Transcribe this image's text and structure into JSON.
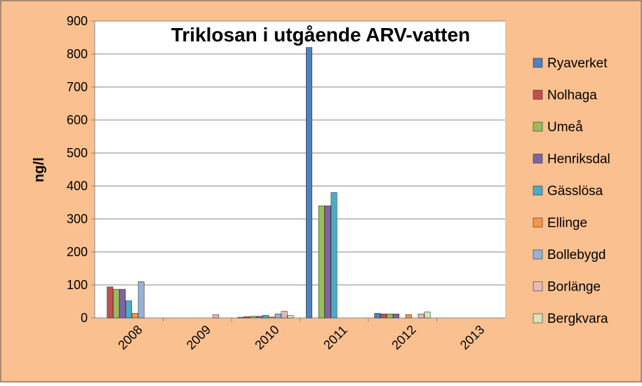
{
  "chart_data": {
    "type": "bar",
    "title": "Triklosan i utgående ARV-vatten",
    "xlabel": "",
    "ylabel": "ng/l",
    "ylim": [
      0,
      900
    ],
    "yticks": [
      "0",
      "100",
      "200",
      "300",
      "400",
      "500",
      "600",
      "700",
      "800",
      "900"
    ],
    "grid": true,
    "legend_position": "right",
    "categories": [
      "2008",
      "2009",
      "2010",
      "2011",
      "2012",
      "2013"
    ],
    "series": [
      {
        "name": "Ryaverket",
        "color": "#4F81BD",
        "values": [
          null,
          null,
          2,
          820,
          14,
          null
        ]
      },
      {
        "name": "Nolhaga",
        "color": "#C0504D",
        "values": [
          94,
          null,
          4,
          null,
          12,
          null
        ]
      },
      {
        "name": "Umeå",
        "color": "#9BBB59",
        "values": [
          87,
          null,
          5,
          340,
          12,
          null
        ]
      },
      {
        "name": "Henriksdal",
        "color": "#8064A2",
        "values": [
          87,
          null,
          5,
          340,
          12,
          null
        ]
      },
      {
        "name": "Gässlösa",
        "color": "#4BACC6",
        "values": [
          52,
          null,
          8,
          380,
          null,
          null
        ]
      },
      {
        "name": "Ellinge",
        "color": "#F79646",
        "values": [
          14,
          null,
          3,
          null,
          10,
          null
        ]
      },
      {
        "name": "Bollebygd",
        "color": "#95B3D7",
        "values": [
          110,
          null,
          12,
          null,
          null,
          null
        ]
      },
      {
        "name": "Borlänge",
        "color": "#E6B9B8",
        "values": [
          null,
          10,
          20,
          null,
          12,
          null
        ]
      },
      {
        "name": "Bergkvara",
        "color": "#D7E4BD",
        "values": [
          null,
          null,
          7,
          null,
          18,
          null
        ]
      }
    ]
  },
  "colors": {
    "background": "#FAC090",
    "plot_area": "#FFFFFF",
    "gridline": "#878787",
    "text": "#000000"
  }
}
